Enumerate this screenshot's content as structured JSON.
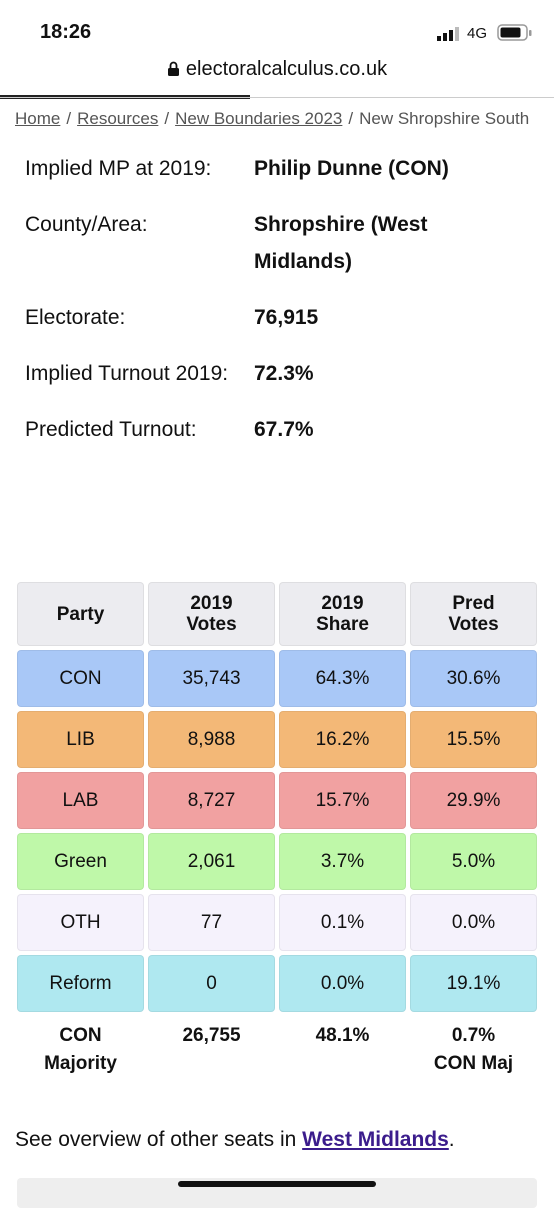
{
  "status_bar": {
    "time": "18:26",
    "network": "4G"
  },
  "address_bar": {
    "url": "electoralcalculus.co.uk"
  },
  "breadcrumb": {
    "items": [
      "Home",
      "Resources",
      "New Boundaries 2023",
      "New Shropshire South"
    ],
    "separator": "/"
  },
  "info": [
    {
      "label": "Implied MP at 2019:",
      "value": "Philip Dunne  (CON)"
    },
    {
      "label": "County/Area:",
      "value": "Shropshire (West Midlands)"
    },
    {
      "label": "Electorate:",
      "value": "76,915"
    },
    {
      "label": "Implied Turnout 2019:",
      "value": "72.3%"
    },
    {
      "label": "Predicted Turnout:",
      "value": "67.7%"
    }
  ],
  "table": {
    "header": [
      "Party",
      "2019 Votes",
      "2019 Share",
      "Pred Votes"
    ],
    "header_color": "#ececf0",
    "rows": [
      {
        "cells": [
          "CON",
          "35,743",
          "64.3%",
          "30.6%"
        ],
        "color": "#a9c8f7"
      },
      {
        "cells": [
          "LIB",
          "8,988",
          "16.2%",
          "15.5%"
        ],
        "color": "#f3b877"
      },
      {
        "cells": [
          "LAB",
          "8,727",
          "15.7%",
          "29.9%"
        ],
        "color": "#f1a1a1"
      },
      {
        "cells": [
          "Green",
          "2,061",
          "3.7%",
          "5.0%"
        ],
        "color": "#bff8a9"
      },
      {
        "cells": [
          "OTH",
          "77",
          "0.1%",
          "0.0%"
        ],
        "color": "#f5f2fc"
      },
      {
        "cells": [
          "Reform",
          "0",
          "0.0%",
          "19.1%"
        ],
        "color": "#afe8f0"
      }
    ],
    "footer": [
      "CON Majority",
      "26,755",
      "48.1%",
      "0.7% CON Maj"
    ]
  },
  "overview": {
    "prefix": "See overview of other seats in ",
    "link": "West Midlands",
    "suffix": "."
  }
}
